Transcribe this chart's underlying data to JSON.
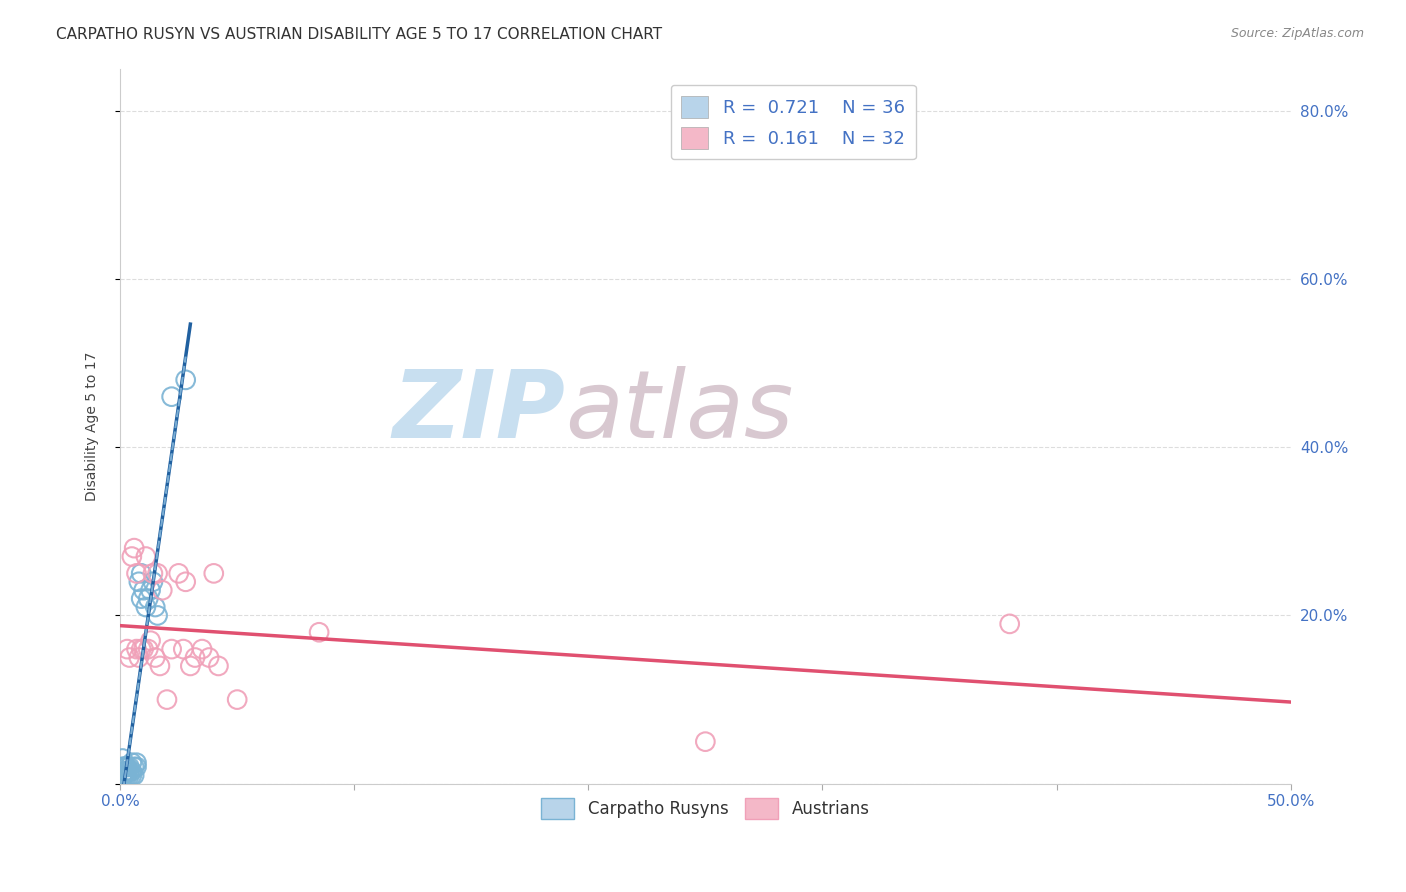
{
  "title": "CARPATHO RUSYN VS AUSTRIAN DISABILITY AGE 5 TO 17 CORRELATION CHART",
  "source": "Source: ZipAtlas.com",
  "ylabel": "Disability Age 5 to 17",
  "legend_1": "R =  0.721    N = 36",
  "legend_2": "R =  0.161    N = 32",
  "legend_color_1": "#b8d4ea",
  "legend_color_2": "#f4b8c8",
  "r1": 0.721,
  "n1": 36,
  "r2": 0.161,
  "n2": 32,
  "carpatho_x": [
    0.001,
    0.001,
    0.001,
    0.001,
    0.001,
    0.0015,
    0.0015,
    0.002,
    0.002,
    0.002,
    0.0025,
    0.003,
    0.003,
    0.003,
    0.004,
    0.004,
    0.004,
    0.005,
    0.005,
    0.005,
    0.006,
    0.006,
    0.007,
    0.007,
    0.008,
    0.009,
    0.009,
    0.01,
    0.011,
    0.012,
    0.013,
    0.014,
    0.015,
    0.016,
    0.022,
    0.028
  ],
  "carpatho_y": [
    0.01,
    0.01,
    0.01,
    0.02,
    0.03,
    0.01,
    0.02,
    0.01,
    0.015,
    0.02,
    0.02,
    0.01,
    0.015,
    0.02,
    0.01,
    0.015,
    0.02,
    0.01,
    0.015,
    0.025,
    0.01,
    0.02,
    0.02,
    0.025,
    0.24,
    0.22,
    0.25,
    0.23,
    0.21,
    0.22,
    0.23,
    0.24,
    0.21,
    0.2,
    0.46,
    0.48
  ],
  "austrian_x": [
    0.003,
    0.004,
    0.005,
    0.006,
    0.007,
    0.007,
    0.008,
    0.009,
    0.01,
    0.011,
    0.012,
    0.013,
    0.014,
    0.015,
    0.016,
    0.017,
    0.018,
    0.02,
    0.022,
    0.025,
    0.027,
    0.028,
    0.03,
    0.032,
    0.035,
    0.038,
    0.04,
    0.042,
    0.05,
    0.085,
    0.25,
    0.38
  ],
  "austrian_y": [
    0.16,
    0.15,
    0.27,
    0.28,
    0.16,
    0.25,
    0.15,
    0.16,
    0.16,
    0.27,
    0.16,
    0.17,
    0.25,
    0.15,
    0.25,
    0.14,
    0.23,
    0.1,
    0.16,
    0.25,
    0.16,
    0.24,
    0.14,
    0.15,
    0.16,
    0.15,
    0.25,
    0.14,
    0.1,
    0.18,
    0.05,
    0.19
  ],
  "xlim": [
    0.0,
    0.5
  ],
  "ylim": [
    0.0,
    0.85
  ],
  "bg_color": "#ffffff",
  "grid_color": "#dddddd",
  "scatter_blue_color": "#7ab3d4",
  "scatter_pink_color": "#f0a0b8",
  "line_blue_color": "#2060a0",
  "line_blue_dash_color": "#90c0e0",
  "line_pink_color": "#e05070",
  "watermark_zip_color": "#c8dff0",
  "watermark_atlas_color": "#d8c8d0",
  "title_fontsize": 11,
  "source_fontsize": 9,
  "axis_label_fontsize": 10,
  "tick_fontsize": 11
}
